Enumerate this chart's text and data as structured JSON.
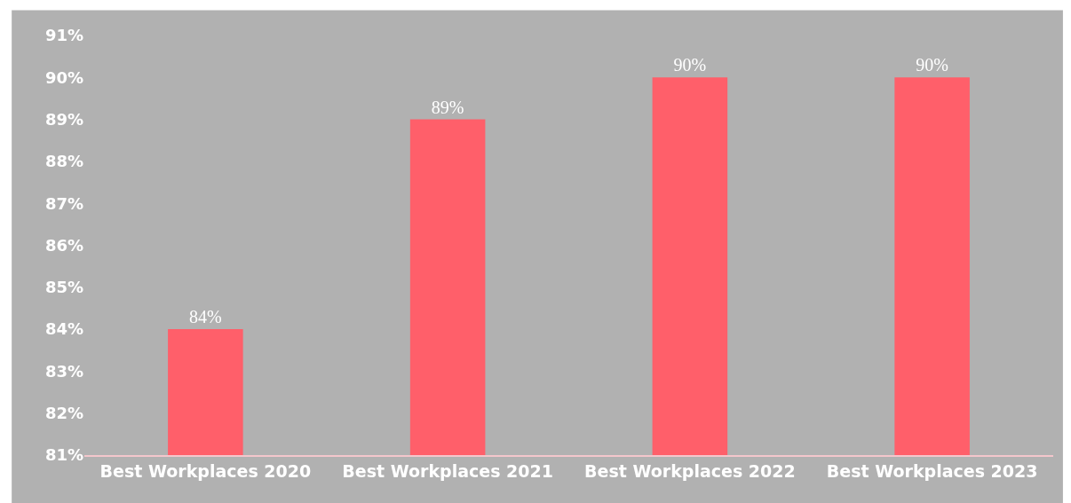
{
  "chart_data": {
    "type": "bar",
    "categories": [
      "Best Workplaces 2020",
      "Best Workplaces 2021",
      "Best Workplaces 2022",
      "Best Workplaces 2023"
    ],
    "values": [
      84,
      89,
      90,
      90
    ],
    "value_labels": [
      "84%",
      "89%",
      "90%",
      "90%"
    ],
    "color": "#ff5f6a",
    "ylim": [
      81,
      91
    ],
    "yticks": [
      {
        "value": 81,
        "label": "81%"
      },
      {
        "value": 82,
        "label": "82%"
      },
      {
        "value": 83,
        "label": "83%"
      },
      {
        "value": 84,
        "label": "84%"
      },
      {
        "value": 85,
        "label": "85%"
      },
      {
        "value": 86,
        "label": "86%"
      },
      {
        "value": 87,
        "label": "87%"
      },
      {
        "value": 88,
        "label": "88%"
      },
      {
        "value": 89,
        "label": "89%"
      },
      {
        "value": 90,
        "label": "90%"
      },
      {
        "value": 91,
        "label": "91%"
      }
    ],
    "grid": false,
    "legend": false
  }
}
